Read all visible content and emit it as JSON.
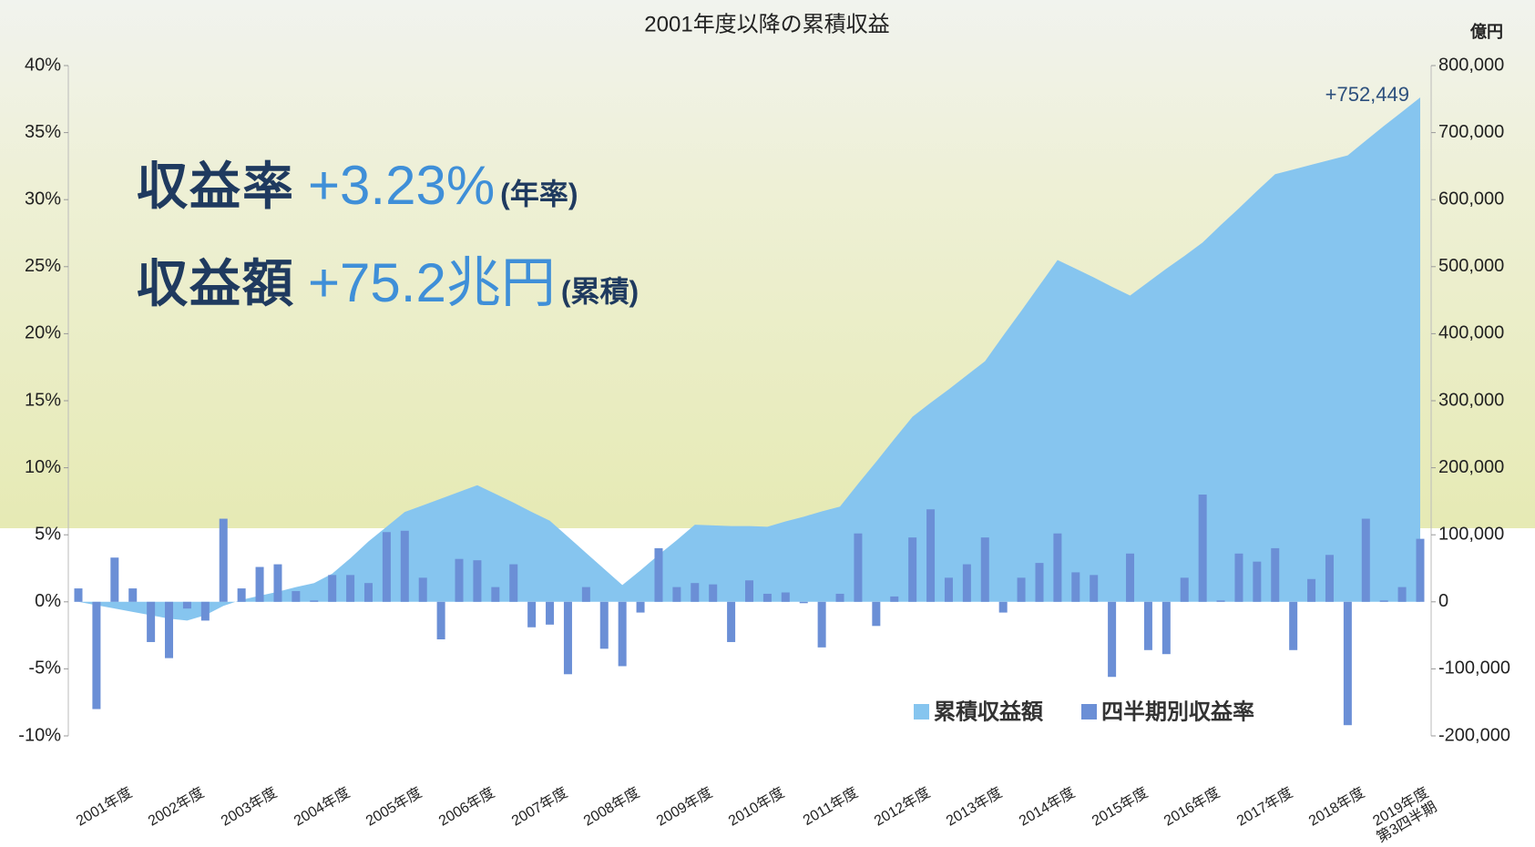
{
  "chart_data": {
    "type": "combo",
    "title": "2001年度以降の累積収益",
    "y2_unit": "億円",
    "headline": [
      {
        "label": "収益率",
        "value": "+3.23%",
        "note": "(年率)"
      },
      {
        "label": "収益額",
        "value": "+75.2兆円",
        "note": "(累積)"
      }
    ],
    "categories": [
      "2001年度",
      null,
      null,
      null,
      "2002年度",
      null,
      null,
      null,
      "2003年度",
      null,
      null,
      null,
      "2004年度",
      null,
      null,
      null,
      "2005年度",
      null,
      null,
      null,
      "2006年度",
      null,
      null,
      null,
      "2007年度",
      null,
      null,
      null,
      "2008年度",
      null,
      null,
      null,
      "2009年度",
      null,
      null,
      null,
      "2010年度",
      null,
      null,
      null,
      "2011年度",
      null,
      null,
      null,
      "2012年度",
      null,
      null,
      null,
      "2013年度",
      null,
      null,
      null,
      "2014年度",
      null,
      null,
      null,
      "2015年度",
      null,
      null,
      null,
      "2016年度",
      null,
      null,
      null,
      "2017年度",
      null,
      null,
      null,
      "2018年度",
      null,
      null,
      null,
      "2019年度\n第3四半期",
      null,
      null
    ],
    "series": [
      {
        "name": "累積収益額",
        "type": "area",
        "axis": "y2",
        "color": "#86c5ef",
        "values": [
          0,
          -5000,
          -10000,
          -15000,
          -20000,
          -25000,
          -28000,
          -20000,
          -6000,
          3000,
          9000,
          15000,
          22000,
          28000,
          42000,
          65000,
          90000,
          112000,
          134000,
          144000,
          154000,
          164000,
          174000,
          161000,
          148000,
          134000,
          121000,
          97000,
          73000,
          49000,
          25000,
          47000,
          70000,
          92000,
          115000,
          114000,
          113000,
          113000,
          112000,
          120000,
          127000,
          135000,
          142000,
          176000,
          209000,
          243000,
          276000,
          297000,
          317000,
          338000,
          359000,
          397000,
          434000,
          472000,
          510000,
          497000,
          484000,
          470000,
          457000,
          477000,
          497000,
          516000,
          536000,
          562000,
          587000,
          613000,
          638000,
          645000,
          652000,
          659000,
          666000,
          688000,
          710000,
          731000,
          752449
        ],
        "value_labels": [
          null,
          null,
          null,
          null,
          null,
          null,
          null,
          null,
          null,
          null,
          null,
          null,
          null,
          null,
          null,
          null,
          null,
          null,
          null,
          null,
          null,
          null,
          null,
          null,
          null,
          null,
          null,
          null,
          null,
          null,
          null,
          null,
          null,
          null,
          null,
          null,
          null,
          null,
          null,
          null,
          null,
          null,
          null,
          null,
          null,
          null,
          null,
          null,
          null,
          null,
          null,
          null,
          null,
          null,
          null,
          null,
          null,
          null,
          null,
          null,
          null,
          null,
          null,
          null,
          null,
          null,
          null,
          null,
          null,
          null,
          null,
          null,
          null,
          null,
          "+752,449"
        ]
      },
      {
        "name": "四半期別収益率",
        "type": "bar",
        "color": "#6b8fd6",
        "values": [
          1.0,
          -8.0,
          3.3,
          1.0,
          -3.0,
          -4.2,
          -0.5,
          -1.4,
          6.2,
          1.0,
          2.6,
          2.8,
          0.8,
          0.1,
          2.0,
          2.0,
          1.4,
          5.2,
          5.3,
          1.8,
          -2.8,
          3.2,
          3.1,
          1.1,
          2.8,
          -1.9,
          -1.7,
          -5.4,
          1.1,
          -3.5,
          -4.8,
          -0.8,
          4.0,
          1.1,
          1.4,
          1.3,
          -3.0,
          1.6,
          0.6,
          0.7,
          -0.1,
          -3.4,
          0.6,
          5.1,
          -1.8,
          0.4,
          4.8,
          6.9,
          1.8,
          2.8,
          4.8,
          -0.8,
          1.8,
          2.9,
          5.1,
          2.2,
          2.0,
          -5.6,
          3.6,
          -3.6,
          -3.9,
          1.8,
          8.0,
          0.1,
          3.6,
          3.0,
          4.0,
          -3.6,
          1.7,
          3.5,
          -9.2,
          6.2,
          0.1,
          1.1,
          4.7
        ]
      }
    ],
    "ylim": [
      -10,
      40
    ],
    "yticks": [
      {
        "value": -10,
        "label": "-10%"
      },
      {
        "value": -5,
        "label": "-5%"
      },
      {
        "value": 0,
        "label": "0%"
      },
      {
        "value": 5,
        "label": "5%"
      },
      {
        "value": 10,
        "label": "10%"
      },
      {
        "value": 15,
        "label": "15%"
      },
      {
        "value": 20,
        "label": "20%"
      },
      {
        "value": 25,
        "label": "25%"
      },
      {
        "value": 30,
        "label": "30%"
      },
      {
        "value": 35,
        "label": "35%"
      },
      {
        "value": 40,
        "label": "40%"
      }
    ],
    "y2lim": [
      -200000,
      800000
    ],
    "y2ticks": [
      {
        "value": -200000,
        "label": "-200,000"
      },
      {
        "value": -100000,
        "label": "-100,000"
      },
      0,
      {
        "value": 100000,
        "label": "100,000"
      },
      {
        "value": 200000,
        "label": "200,000"
      },
      {
        "value": 300000,
        "label": "300,000"
      },
      {
        "value": 400000,
        "label": "400,000"
      },
      {
        "value": 500000,
        "label": "500,000"
      },
      {
        "value": 600000,
        "label": "600,000"
      },
      {
        "value": 700000,
        "label": "700,000"
      },
      {
        "value": 800000,
        "label": "800,000"
      }
    ],
    "grid": false
  }
}
